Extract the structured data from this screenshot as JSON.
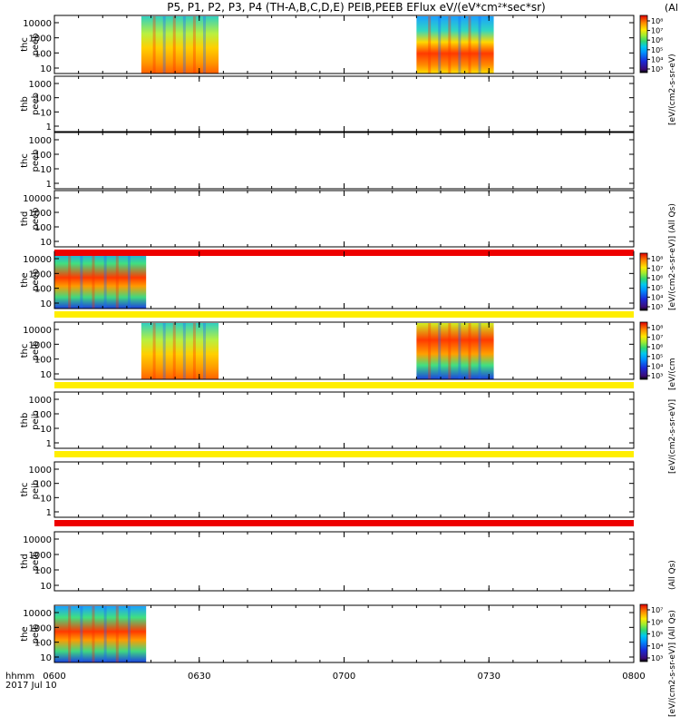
{
  "header": {
    "title": "P5, P1, P2, P3, P4 (TH-A,B,C,D,E) PEIB,PEEB EFlux eV/(eV*cm²*sec*sr)",
    "cut_label": "(Al"
  },
  "footer": {
    "axis_unit": "hhmm",
    "date": "2017 Jul 10"
  },
  "colorbar": {
    "label_full": "[eV/(cm2-s-sr-eV)]",
    "label_all": "[eV/(cm2-s-sr-eV)] (All Qs)",
    "label_short": "[eV/(cm2-s-sr-eV)",
    "overlap_a": "[eV/(cm",
    "overlap_b": "(All Qs)",
    "ticks_a": [
      "10⁸",
      "10⁷",
      "10⁶",
      "10⁵",
      "10⁴",
      "10³"
    ],
    "ticks_b": [
      "10⁸",
      "10⁷",
      "10⁶",
      "10⁵",
      "10⁴",
      "10³"
    ],
    "ticks_c": [
      "10⁸",
      "10⁷",
      "10⁶",
      "10⁵",
      "10⁴",
      "10³"
    ],
    "ticks_d": [
      "10⁷",
      "10⁶",
      "10⁵",
      "10⁴",
      "10³"
    ],
    "colors": [
      "#ffffff",
      "#000000",
      "#3b0a78",
      "#1a2ad8",
      "#0090ff",
      "#00c8f0",
      "#20d890",
      "#60e040",
      "#c8f028",
      "#ffe800",
      "#ff9800",
      "#ff3a00",
      "#e00000",
      "#ffffff"
    ]
  },
  "chart_data": {
    "type": "heatmap",
    "x_ticks": [
      "0600",
      "0630",
      "0700",
      "0730",
      "0800"
    ],
    "xlim_hhmm": [
      "0600",
      "0800"
    ],
    "panels": [
      {
        "label": "thc peeb",
        "yticks": [
          "10000",
          "1000",
          "100",
          "10"
        ],
        "segments": [
          {
            "start": "0618",
            "end": "0634",
            "style": "green-blue"
          },
          {
            "start": "0715",
            "end": "0731",
            "style": "blue-red"
          }
        ]
      },
      {
        "label": "thb peeb",
        "yticks": [
          "1000",
          "100",
          "10",
          "1"
        ],
        "segments": []
      },
      {
        "label": "thc peeb",
        "yticks": [
          "1000",
          "100",
          "10",
          "1"
        ],
        "segments": []
      },
      {
        "label": "thd peeb",
        "yticks": [
          "10000",
          "1000",
          "100",
          "10"
        ],
        "segments": []
      },
      {
        "label": "the peeb",
        "yticks": [
          "10000",
          "1000",
          "100",
          "10"
        ],
        "segments": [
          {
            "start": "0600",
            "end": "0619",
            "style": "red-blue"
          }
        ]
      },
      {
        "label": "thc peib",
        "yticks": [
          "10000",
          "1000",
          "100",
          "10"
        ],
        "segments": [
          {
            "start": "0618",
            "end": "0634",
            "style": "green-blue"
          },
          {
            "start": "0715",
            "end": "0731",
            "style": "yellow-red"
          }
        ]
      },
      {
        "label": "thb peib",
        "yticks": [
          "1000",
          "100",
          "10",
          "1"
        ],
        "segments": []
      },
      {
        "label": "thc peib",
        "yticks": [
          "1000",
          "100",
          "10",
          "1"
        ],
        "segments": []
      },
      {
        "label": "thd peib",
        "yticks": [
          "10000",
          "1000",
          "100",
          "10"
        ],
        "segments": []
      },
      {
        "label": "the peib",
        "yticks": [
          "10000",
          "1000",
          "100",
          "10"
        ],
        "segments": [
          {
            "start": "0600",
            "end": "0619",
            "style": "red-blue"
          }
        ]
      }
    ],
    "mode_bars": [
      {
        "after_panel": 4,
        "color": "red"
      },
      {
        "after_panel": 5,
        "color": "yellow"
      },
      {
        "after_panel": 6,
        "color": "yellow"
      },
      {
        "after_panel": 7,
        "color": "yellow"
      },
      {
        "after_panel": 8,
        "color": "red"
      }
    ]
  }
}
